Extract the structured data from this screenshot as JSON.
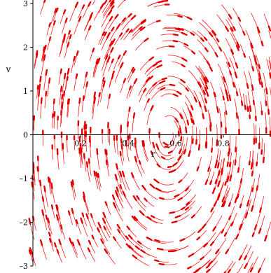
{
  "chart_data": {
    "type": "scatter",
    "subtype": "phase-portrait-direction-field",
    "title": "",
    "xlabel": "r",
    "ylabel": "v",
    "xlim": [
      0,
      1
    ],
    "ylim": [
      -3,
      3
    ],
    "x_ticks": [
      0.2,
      0.4,
      0.6,
      0.8
    ],
    "y_ticks": [
      -3,
      -2,
      -1,
      0,
      1,
      2,
      3
    ],
    "x_tick_labels": [
      "0.2",
      "0.4",
      "0.6",
      "0.8"
    ],
    "y_tick_labels": [
      "–3",
      "–2",
      "–1",
      "0",
      "1",
      "2",
      "3"
    ],
    "grid": false,
    "legend": "none",
    "color": "#ff0000",
    "equilibrium": {
      "r": 0.57,
      "v": 0
    },
    "rotation": "clockwise"
  }
}
